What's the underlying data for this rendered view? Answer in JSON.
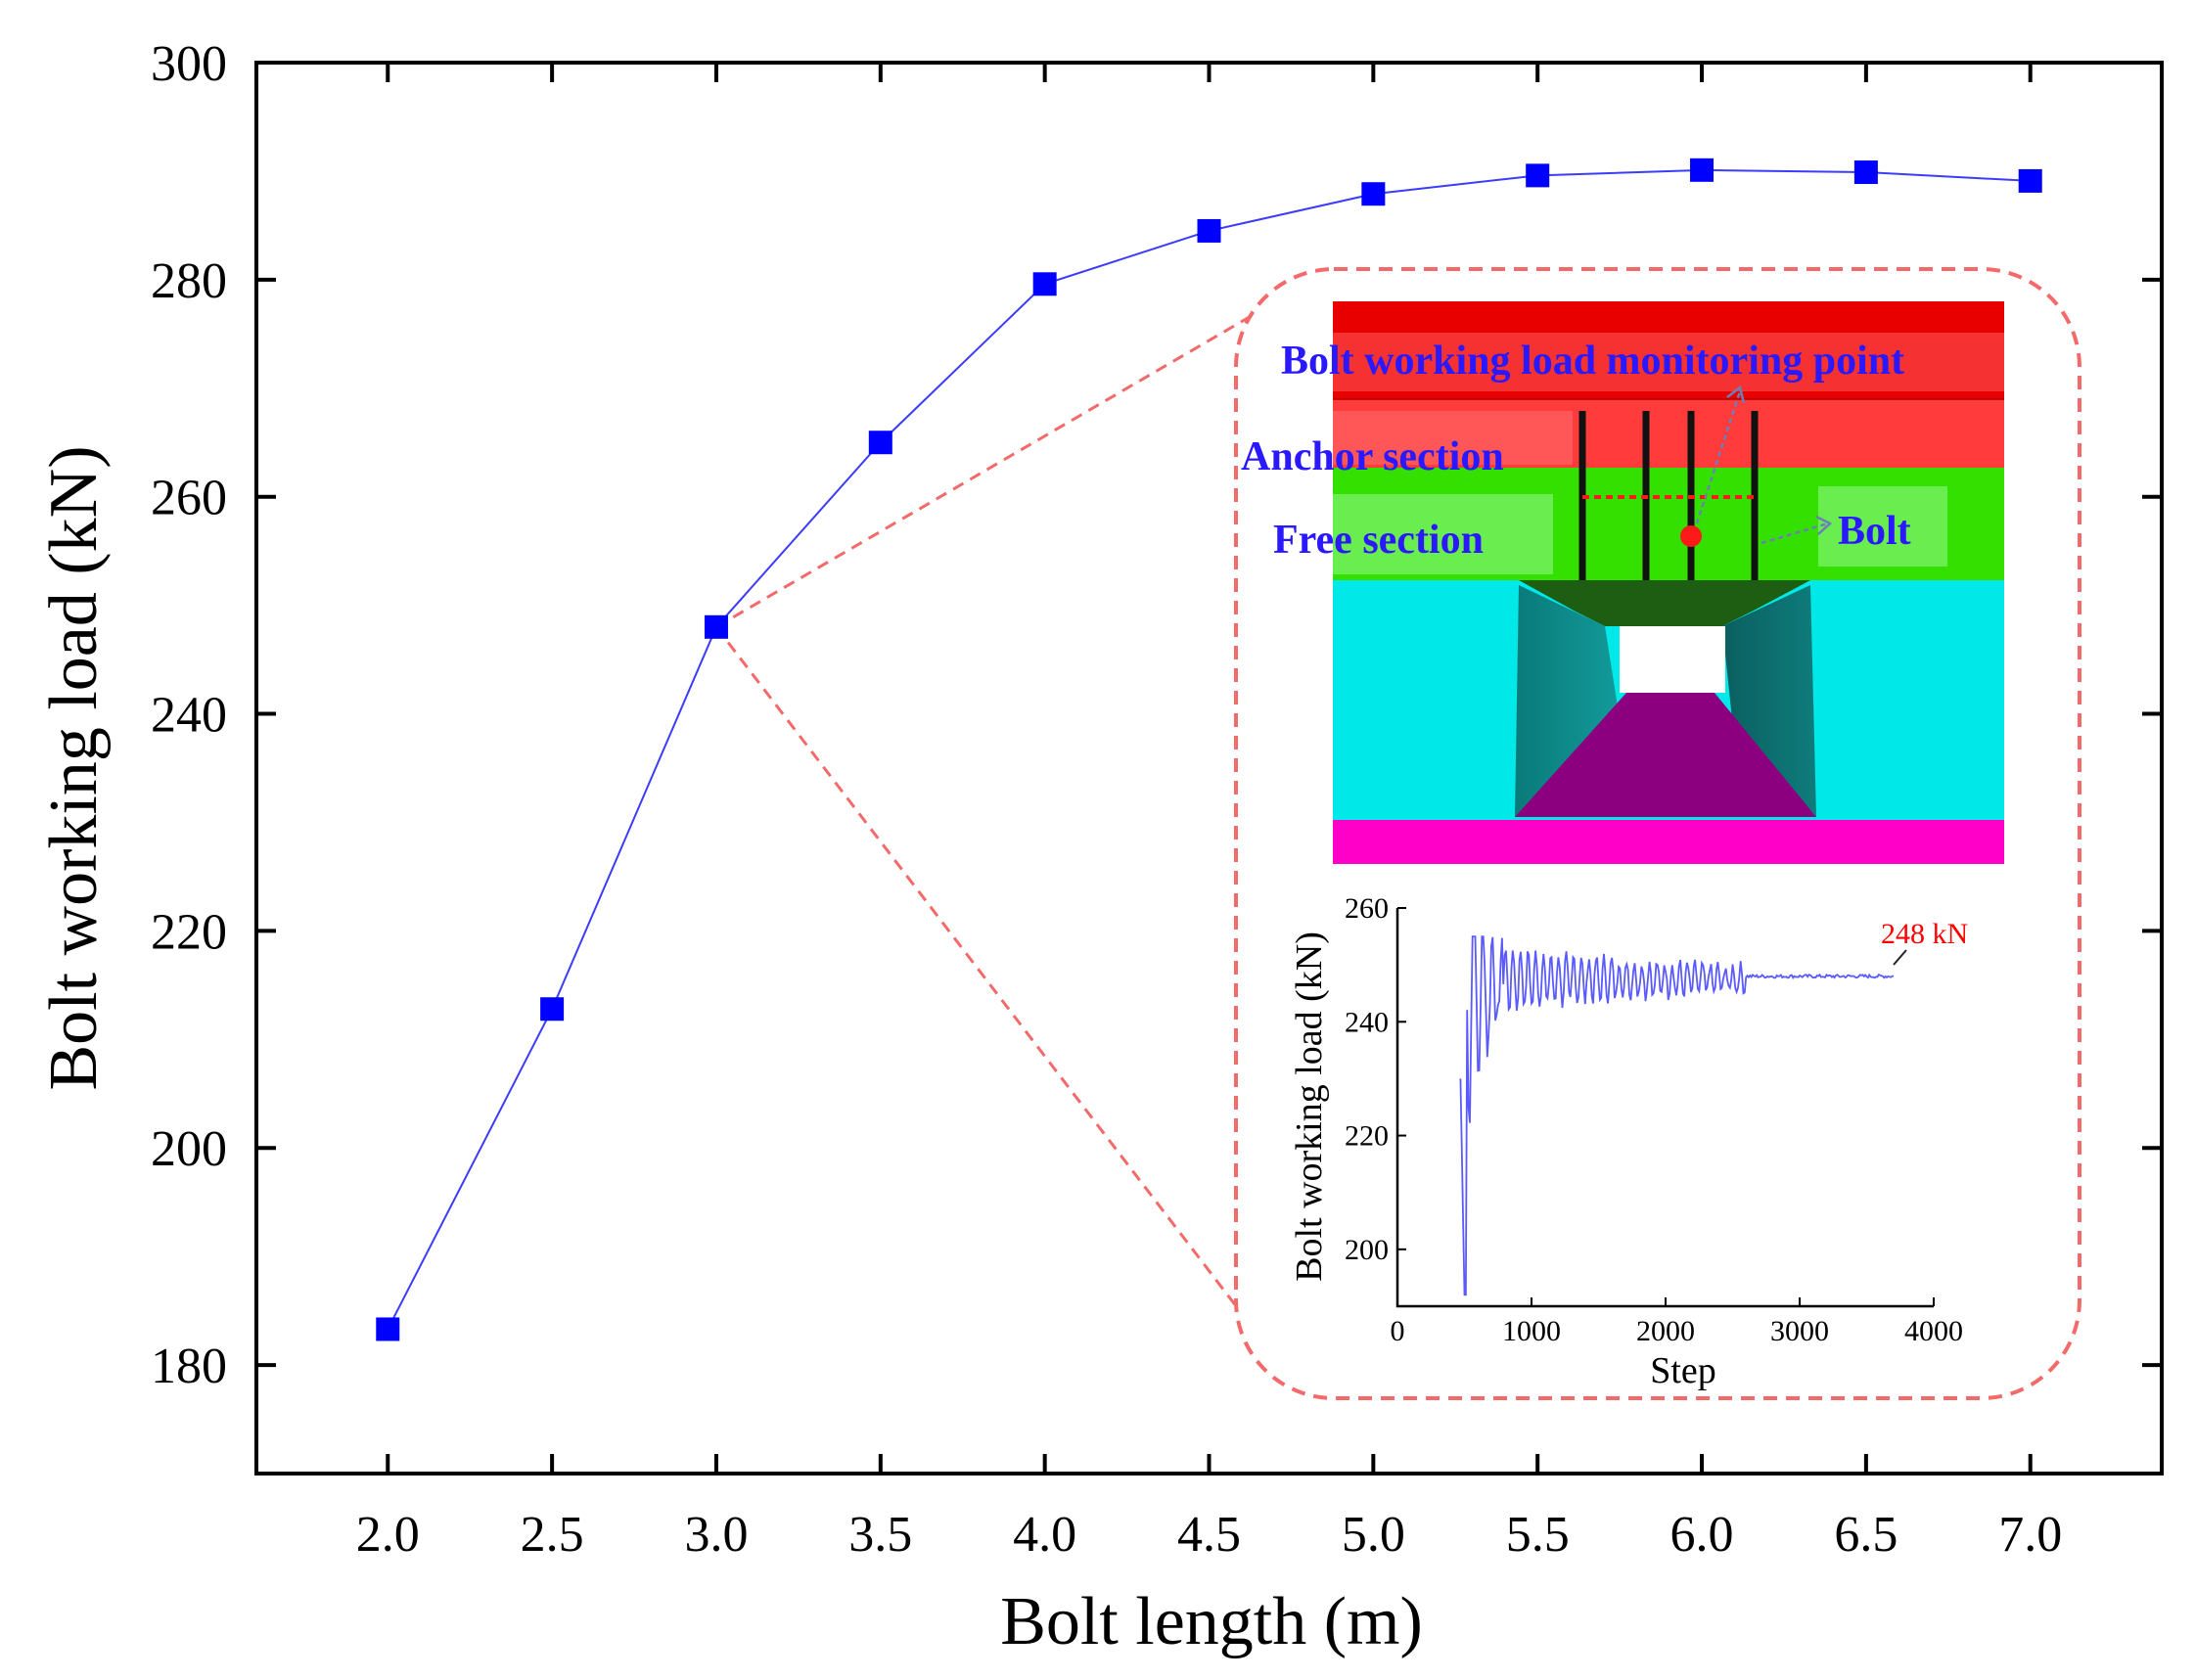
{
  "chart_data": {
    "type": "line",
    "title": "",
    "xlabel": "Bolt length (m)",
    "ylabel": "Bolt working load (kN)",
    "xlim": [
      1.6,
      7.4
    ],
    "ylim": [
      170,
      300
    ],
    "x": [
      2.0,
      2.5,
      3.0,
      3.5,
      4.0,
      4.5,
      5.0,
      5.5,
      6.0,
      6.5,
      7.0
    ],
    "x_tick_labels": [
      "2.0",
      "2.5",
      "3.0",
      "3.5",
      "4.0",
      "4.5",
      "5.0",
      "5.5",
      "6.0",
      "6.5",
      "7.0"
    ],
    "y_ticks": [
      180,
      200,
      220,
      240,
      260,
      280,
      300
    ],
    "series": [
      {
        "name": "Bolt working load",
        "color": "#0000ff",
        "marker": "square",
        "values": [
          183.3,
          212.8,
          248.0,
          265.0,
          279.6,
          284.5,
          287.9,
          289.6,
          290.1,
          289.9,
          289.1
        ]
      }
    ],
    "grid": false,
    "legend": "none",
    "highlight_point": {
      "x": 3.0,
      "y": 248.0
    }
  },
  "inset_model": {
    "labels": {
      "monitoring": "Bolt working load  monitoring point",
      "anchor": "Anchor section",
      "free": "Free section",
      "bolt": "Bolt"
    },
    "colors": {
      "roof_top": "#e80000",
      "roof_mid": "#ff3b3b",
      "anchor_layer": "#33e000",
      "side_rock": "#00e8e8",
      "side_wall": "#0c8c8c",
      "floor_face": "#8c0080",
      "base": "#ff00c8",
      "label_text": "#2a18ff",
      "monitor_dot": "#ff1a1a"
    }
  },
  "inset_history": {
    "xlabel": "Step",
    "ylabel": "Bolt working load (kN)",
    "xlim": [
      0,
      4000
    ],
    "ylim": [
      190,
      260
    ],
    "x_ticks": [
      0,
      1000,
      2000,
      3000,
      4000
    ],
    "x_tick_labels": [
      "0",
      "1000",
      "2000",
      "3000",
      "4000"
    ],
    "y_ticks": [
      200,
      220,
      240,
      260
    ],
    "y_tick_labels": [
      "200",
      "220",
      "240",
      "260"
    ],
    "final_value": 248,
    "annotation": "248 kN",
    "line_color": "#5a5aff",
    "annotation_color": "#ff0000"
  }
}
